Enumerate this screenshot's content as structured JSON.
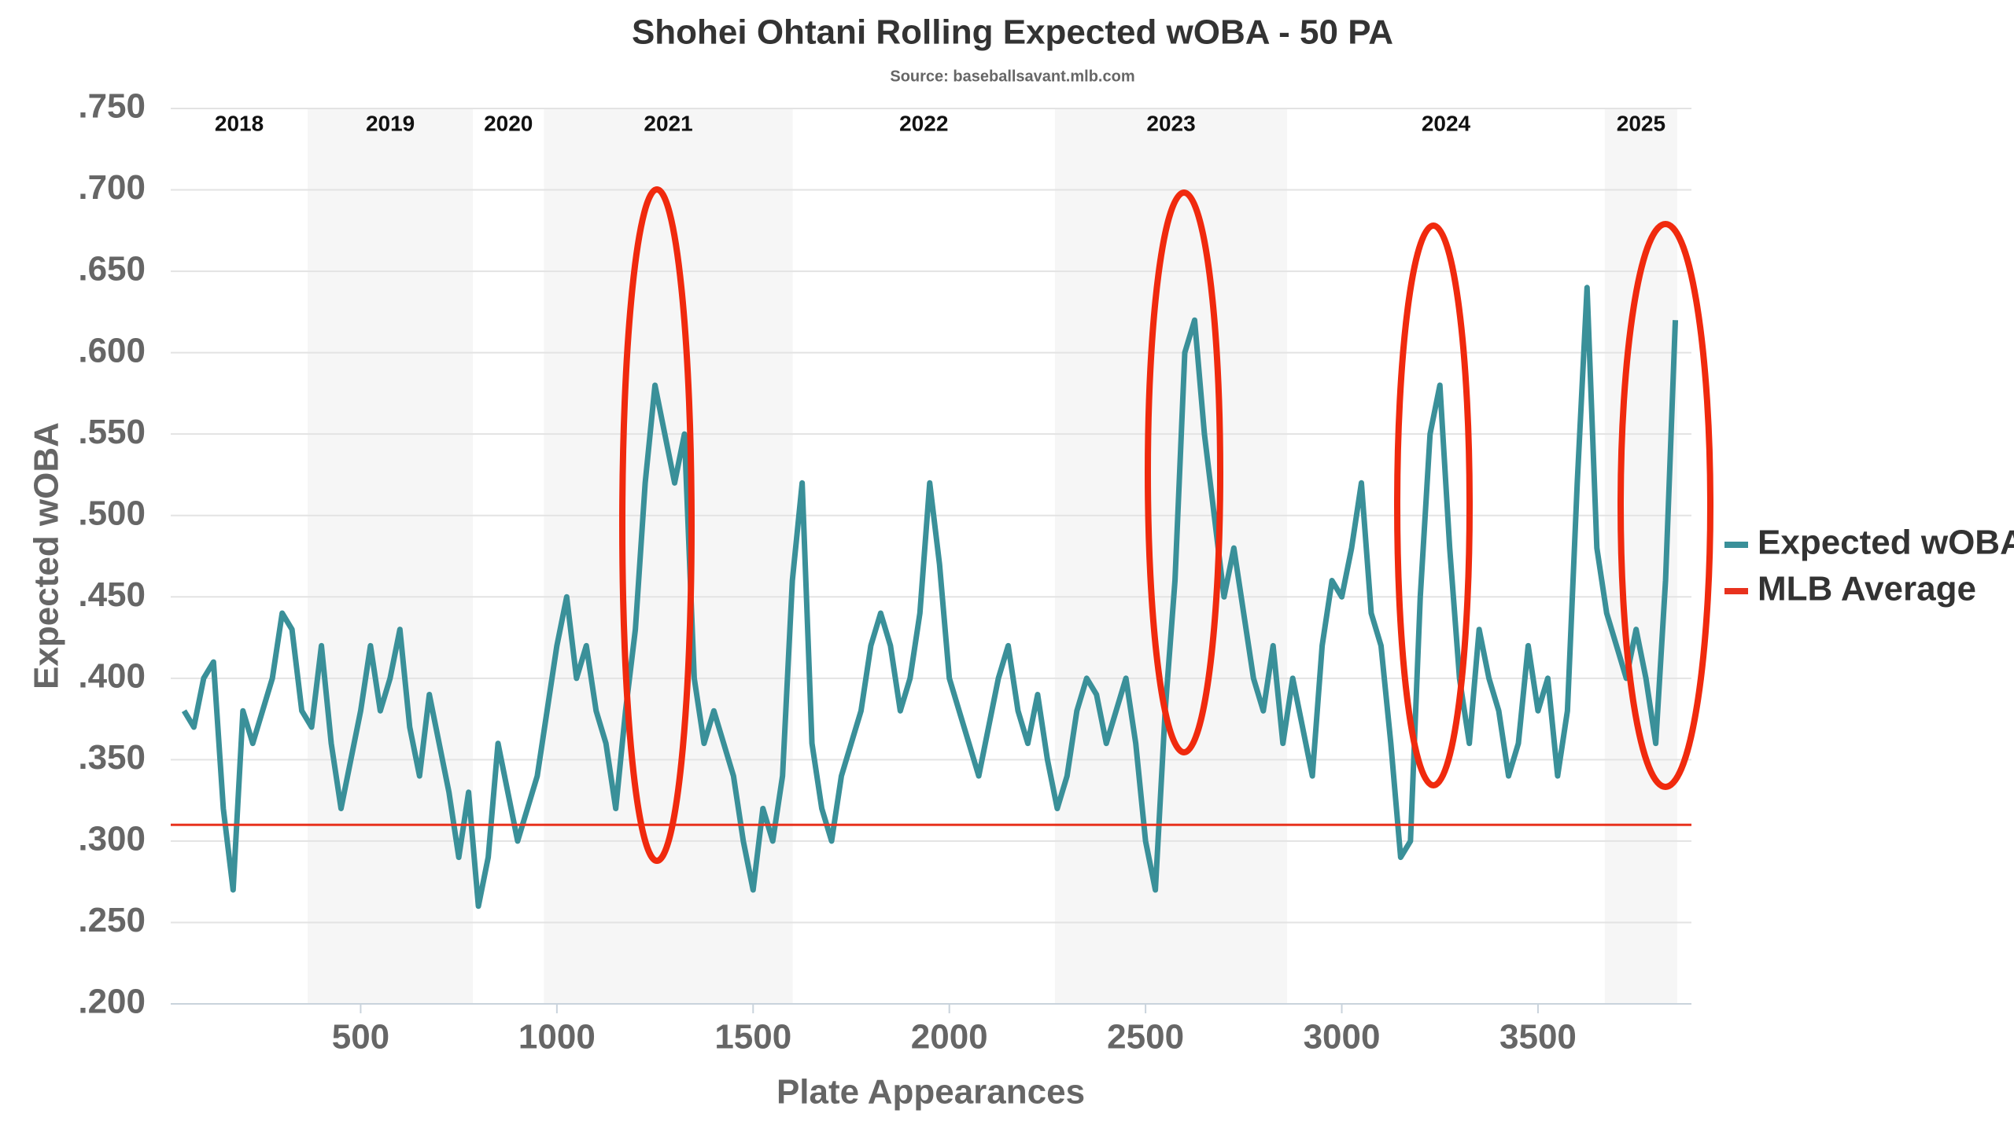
{
  "chart_data": {
    "type": "line",
    "title": "Shohei Ohtani Rolling Expected wOBA - 50 PA",
    "subtitle": "Source: baseballsavant.mlb.com",
    "x_label": "Plate Appearances",
    "y_label": "Expected wOBA",
    "xlim": [
      16,
      3891
    ],
    "xticks": [
      500,
      1000,
      1500,
      2000,
      2500,
      3000,
      3500
    ],
    "ylim": [
      0.2,
      0.75
    ],
    "yticks": [
      {
        "value": 0.2,
        "label": ".200"
      },
      {
        "value": 0.25,
        "label": ".250"
      },
      {
        "value": 0.3,
        "label": ".300"
      },
      {
        "value": 0.35,
        "label": ".350"
      },
      {
        "value": 0.4,
        "label": ".400"
      },
      {
        "value": 0.45,
        "label": ".450"
      },
      {
        "value": 0.5,
        "label": ".500"
      },
      {
        "value": 0.55,
        "label": ".550"
      },
      {
        "value": 0.6,
        "label": ".600"
      },
      {
        "value": 0.65,
        "label": ".650"
      },
      {
        "value": 0.7,
        "label": ".700"
      },
      {
        "value": 0.75,
        "label": ".750"
      }
    ],
    "grid": true,
    "legend": "right",
    "seasons": [
      {
        "label": "2018",
        "start": 16,
        "end": 365,
        "shaded": false
      },
      {
        "label": "2019",
        "start": 365,
        "end": 786,
        "shaded": true
      },
      {
        "label": "2020",
        "start": 786,
        "end": 967,
        "shaded": false
      },
      {
        "label": "2021",
        "start": 967,
        "end": 1601,
        "shaded": true
      },
      {
        "label": "2022",
        "start": 1601,
        "end": 2269,
        "shaded": false
      },
      {
        "label": "2023",
        "start": 2269,
        "end": 2861,
        "shaded": true
      },
      {
        "label": "2024",
        "start": 2861,
        "end": 3670,
        "shaded": false
      },
      {
        "label": "2025",
        "start": 3670,
        "end": 3855,
        "shaded": true
      }
    ],
    "x": [
      50,
      75,
      100,
      125,
      150,
      175,
      200,
      225,
      250,
      275,
      300,
      325,
      350,
      375,
      400,
      425,
      450,
      475,
      500,
      525,
      550,
      575,
      600,
      625,
      650,
      675,
      700,
      725,
      750,
      775,
      800,
      825,
      850,
      875,
      900,
      925,
      950,
      975,
      1000,
      1025,
      1050,
      1075,
      1100,
      1125,
      1150,
      1175,
      1200,
      1225,
      1250,
      1275,
      1300,
      1325,
      1350,
      1375,
      1400,
      1425,
      1450,
      1475,
      1500,
      1525,
      1550,
      1575,
      1600,
      1625,
      1650,
      1675,
      1700,
      1725,
      1750,
      1775,
      1800,
      1825,
      1850,
      1875,
      1900,
      1925,
      1950,
      1975,
      2000,
      2025,
      2050,
      2075,
      2100,
      2125,
      2150,
      2175,
      2200,
      2225,
      2250,
      2275,
      2300,
      2325,
      2350,
      2375,
      2400,
      2425,
      2450,
      2475,
      2500,
      2525,
      2550,
      2575,
      2600,
      2625,
      2650,
      2675,
      2700,
      2725,
      2750,
      2775,
      2800,
      2825,
      2850,
      2875,
      2900,
      2925,
      2950,
      2975,
      3000,
      3025,
      3050,
      3075,
      3100,
      3125,
      3150,
      3175,
      3200,
      3225,
      3250,
      3275,
      3300,
      3325,
      3350,
      3375,
      3400,
      3425,
      3450,
      3475,
      3500,
      3525,
      3550,
      3575,
      3600,
      3625,
      3650,
      3675,
      3700,
      3725,
      3750,
      3775,
      3800,
      3825,
      3850
    ],
    "series": [
      {
        "name": "Expected wOBA",
        "color": "#3a9099",
        "values": [
          0.38,
          0.37,
          0.4,
          0.41,
          0.32,
          0.27,
          0.38,
          0.36,
          0.38,
          0.4,
          0.44,
          0.43,
          0.38,
          0.37,
          0.42,
          0.36,
          0.32,
          0.35,
          0.38,
          0.42,
          0.38,
          0.4,
          0.43,
          0.37,
          0.34,
          0.39,
          0.36,
          0.33,
          0.29,
          0.33,
          0.26,
          0.29,
          0.36,
          0.33,
          0.3,
          0.32,
          0.34,
          0.38,
          0.42,
          0.45,
          0.4,
          0.42,
          0.38,
          0.36,
          0.32,
          0.38,
          0.43,
          0.52,
          0.58,
          0.55,
          0.52,
          0.55,
          0.4,
          0.36,
          0.38,
          0.36,
          0.34,
          0.3,
          0.27,
          0.32,
          0.3,
          0.34,
          0.46,
          0.52,
          0.36,
          0.32,
          0.3,
          0.34,
          0.36,
          0.38,
          0.42,
          0.44,
          0.42,
          0.38,
          0.4,
          0.44,
          0.52,
          0.47,
          0.4,
          0.38,
          0.36,
          0.34,
          0.37,
          0.4,
          0.42,
          0.38,
          0.36,
          0.39,
          0.35,
          0.32,
          0.34,
          0.38,
          0.4,
          0.39,
          0.36,
          0.38,
          0.4,
          0.36,
          0.3,
          0.27,
          0.38,
          0.46,
          0.6,
          0.62,
          0.55,
          0.5,
          0.45,
          0.48,
          0.44,
          0.4,
          0.38,
          0.42,
          0.36,
          0.4,
          0.37,
          0.34,
          0.42,
          0.46,
          0.45,
          0.48,
          0.52,
          0.44,
          0.42,
          0.36,
          0.29,
          0.3,
          0.45,
          0.55,
          0.58,
          0.48,
          0.4,
          0.36,
          0.43,
          0.4,
          0.38,
          0.34,
          0.36,
          0.42,
          0.38,
          0.4,
          0.34,
          0.38,
          0.52,
          0.64,
          0.48,
          0.44,
          0.42,
          0.4,
          0.43,
          0.4,
          0.36,
          0.46,
          0.62
        ]
      },
      {
        "name": "MLB Average",
        "color": "#e8321e",
        "value": 0.31
      }
    ]
  }
}
